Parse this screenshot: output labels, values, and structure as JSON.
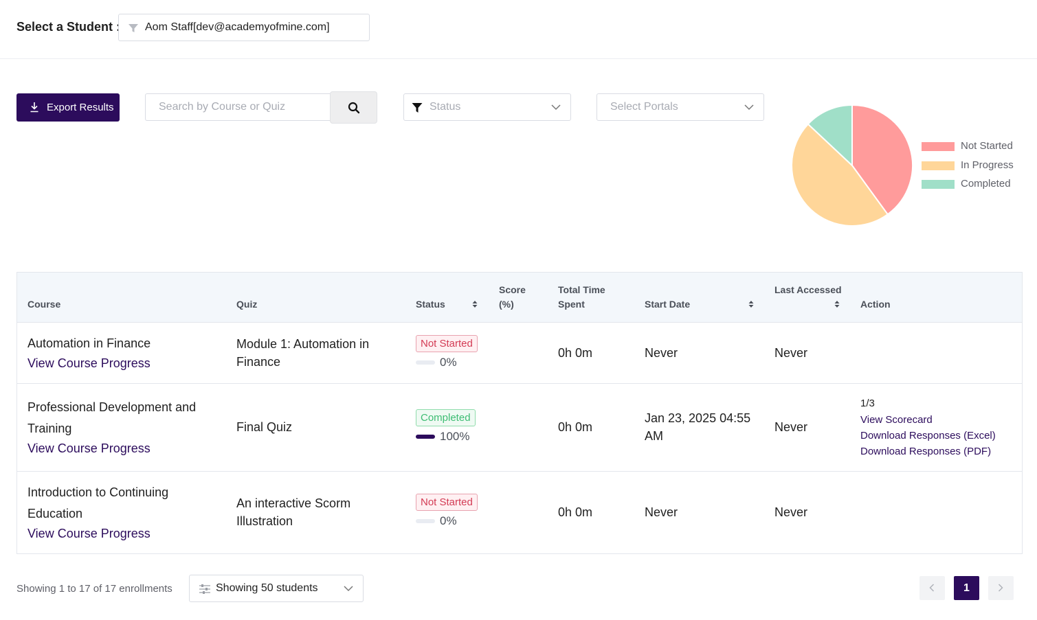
{
  "student_selector": {
    "label": "Select a Student :",
    "value": "Aom Staff[dev@academyofmine.com]"
  },
  "toolbar": {
    "export_label": "Export Results",
    "search_placeholder": "Search by Course or Quiz",
    "status_placeholder": "Status",
    "portals_placeholder": "Select Portals"
  },
  "chart_data": {
    "type": "pie",
    "categories": [
      "Not Started",
      "In Progress",
      "Completed"
    ],
    "values": [
      40,
      47,
      13
    ],
    "colors": [
      "#ff9b9b",
      "#ffd699",
      "#a0dfc8"
    ],
    "legend_position": "right"
  },
  "table": {
    "headers": {
      "course": "Course",
      "quiz": "Quiz",
      "status": "Status",
      "score_line1": "Score",
      "score_line2": "(%)",
      "time_line1": "Total Time",
      "time_line2": "Spent",
      "start_date": "Start Date",
      "last_accessed": "Last Accessed",
      "action": "Action"
    },
    "rows": [
      {
        "course_line1": "Automation in Finance",
        "course_line2": "",
        "course_link": "View Course Progress",
        "quiz_line1": "Module 1: Automation in",
        "quiz_line2": "Finance",
        "status": "Not Started",
        "progress": "0%",
        "score": "",
        "time_spent": "0h 0m",
        "start_line1": "Never",
        "start_line2": "",
        "last_accessed": "Never"
      },
      {
        "course_line1": "Professional Development and",
        "course_line2": "Training",
        "course_link": "View Course Progress",
        "quiz_line1": "Final Quiz",
        "quiz_line2": "",
        "status": "Completed",
        "progress": "100%",
        "score": "",
        "time_spent": "0h 0m",
        "start_line1": "Jan 23, 2025 04:55",
        "start_line2": "AM",
        "last_accessed": "Never",
        "action_count": "1/3",
        "action_scorecard": "View Scorecard",
        "action_excel": "Download Responses (Excel)",
        "action_pdf": "Download Responses (PDF)"
      },
      {
        "course_line1": "Introduction to Continuing",
        "course_line2": "Education",
        "course_link": "View Course Progress",
        "quiz_line1": "An interactive Scorm",
        "quiz_line2": "Illustration",
        "status": "Not Started",
        "progress": "0%",
        "score": "",
        "time_spent": "0h 0m",
        "start_line1": "Never",
        "start_line2": "",
        "last_accessed": "Never"
      }
    ]
  },
  "footer": {
    "showing_text": "Showing 1 to 17 of 17 enrollments",
    "per_page_value": "Showing 50 students",
    "current_page": "1"
  }
}
